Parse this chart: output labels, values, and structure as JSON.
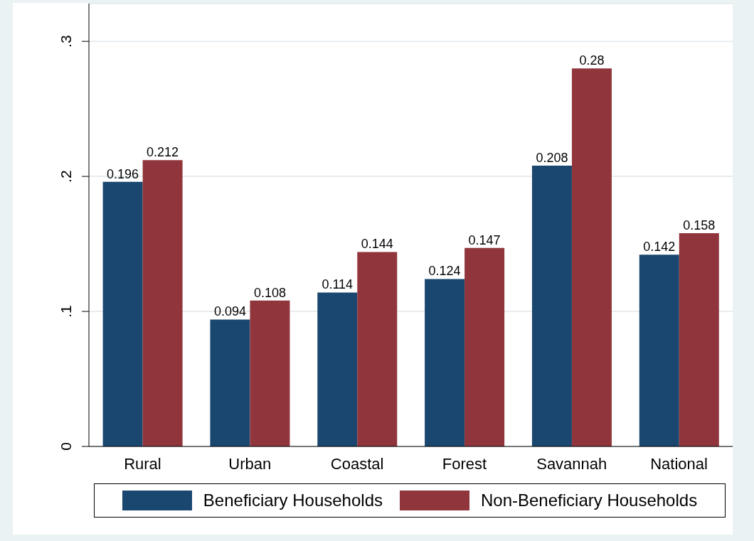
{
  "chart_data": {
    "type": "bar",
    "categories": [
      "Rural",
      "Urban",
      "Coastal",
      "Forest",
      "Savannah",
      "National"
    ],
    "series": [
      {
        "name": "Beneficiary Households",
        "color": "#1a476f",
        "values": [
          0.196,
          0.094,
          0.114,
          0.124,
          0.208,
          0.142
        ]
      },
      {
        "name": "Non-Beneficiary Households",
        "color": "#90353b",
        "values": [
          0.212,
          0.108,
          0.144,
          0.147,
          0.28,
          0.158
        ]
      }
    ],
    "ylim": [
      0,
      0.328
    ],
    "yticks": [
      0,
      {
        "value": 0.1,
        "label": ".1"
      },
      {
        "value": 0.2,
        "label": ".2"
      },
      {
        "value": 0.3,
        "label": ".3"
      }
    ],
    "grid": "y",
    "legend": "bottom",
    "data_labels": true
  }
}
